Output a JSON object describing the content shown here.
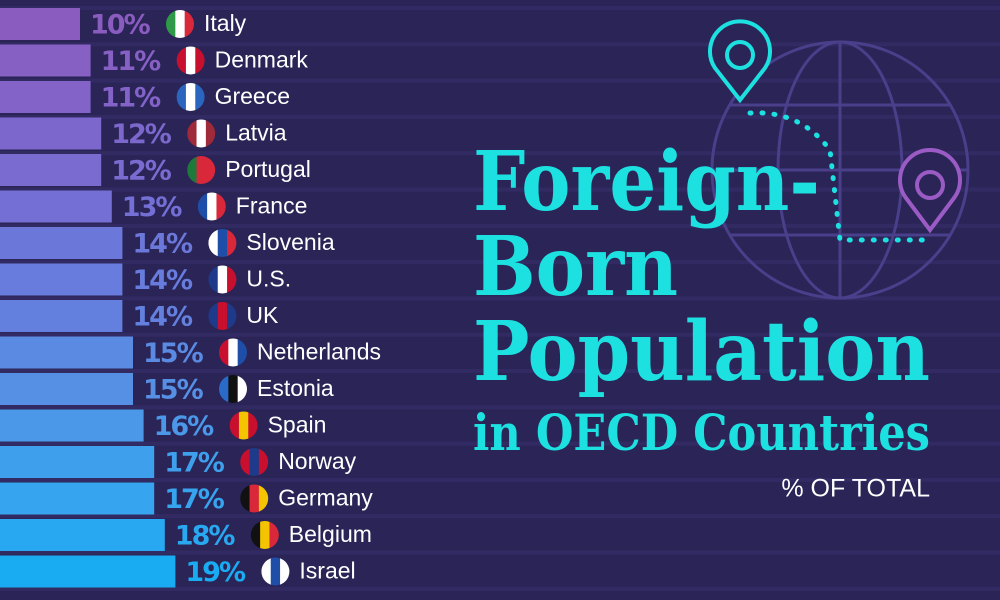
{
  "chart_data": {
    "type": "bar",
    "title_lines": [
      "Foreign-",
      "Born",
      "Population",
      "in OECD Countries"
    ],
    "subtitle": "% OF TOTAL",
    "categories": [
      "Italy",
      "Denmark",
      "Greece",
      "Latvia",
      "Portugal",
      "France",
      "Slovenia",
      "U.S.",
      "UK",
      "Netherlands",
      "Estonia",
      "Spain",
      "Norway",
      "Germany",
      "Belgium",
      "Israel"
    ],
    "values": [
      10,
      11,
      11,
      12,
      12,
      13,
      14,
      14,
      14,
      15,
      15,
      16,
      17,
      17,
      18,
      19
    ],
    "value_labels": [
      "10%",
      "11%",
      "11%",
      "12%",
      "12%",
      "13%",
      "14%",
      "14%",
      "14%",
      "15%",
      "15%",
      "16%",
      "17%",
      "17%",
      "18%",
      "19%"
    ],
    "colors": [
      "#8a5cc0",
      "#8760c4",
      "#8363c8",
      "#7c68cc",
      "#7a6bd0",
      "#746fd4",
      "#6b78da",
      "#677cdc",
      "#6380de",
      "#5a8ae2",
      "#5690e5",
      "#4b98e8",
      "#3ea0ec",
      "#36a4ee",
      "#28a8f0",
      "#1aacf2"
    ],
    "flag_colors": [
      [
        "#2e9a48",
        "#ffffff",
        "#d8283a"
      ],
      [
        "#c8102e",
        "#ffffff",
        "#c8102e"
      ],
      [
        "#2a66c0",
        "#ffffff",
        "#2a66c0"
      ],
      [
        "#9e2a3a",
        "#ffffff",
        "#9e2a3a"
      ],
      [
        "#1e7a3a",
        "#d8283a",
        "#d8283a"
      ],
      [
        "#1e4ea8",
        "#ffffff",
        "#d8283a"
      ],
      [
        "#ffffff",
        "#1e4ea8",
        "#d8283a"
      ],
      [
        "#1e3a8a",
        "#ffffff",
        "#c8102e"
      ],
      [
        "#1e3a8a",
        "#c8102e",
        "#1e3a8a"
      ],
      [
        "#c8102e",
        "#ffffff",
        "#1e4ea8"
      ],
      [
        "#2a6ac8",
        "#111111",
        "#ffffff"
      ],
      [
        "#c8102e",
        "#f5c400",
        "#c8102e"
      ],
      [
        "#c8102e",
        "#1e3a8a",
        "#c8102e"
      ],
      [
        "#111111",
        "#d8283a",
        "#f5c400"
      ],
      [
        "#111111",
        "#f5c400",
        "#d8283a"
      ],
      [
        "#ffffff",
        "#1e4ea8",
        "#ffffff"
      ]
    ]
  }
}
